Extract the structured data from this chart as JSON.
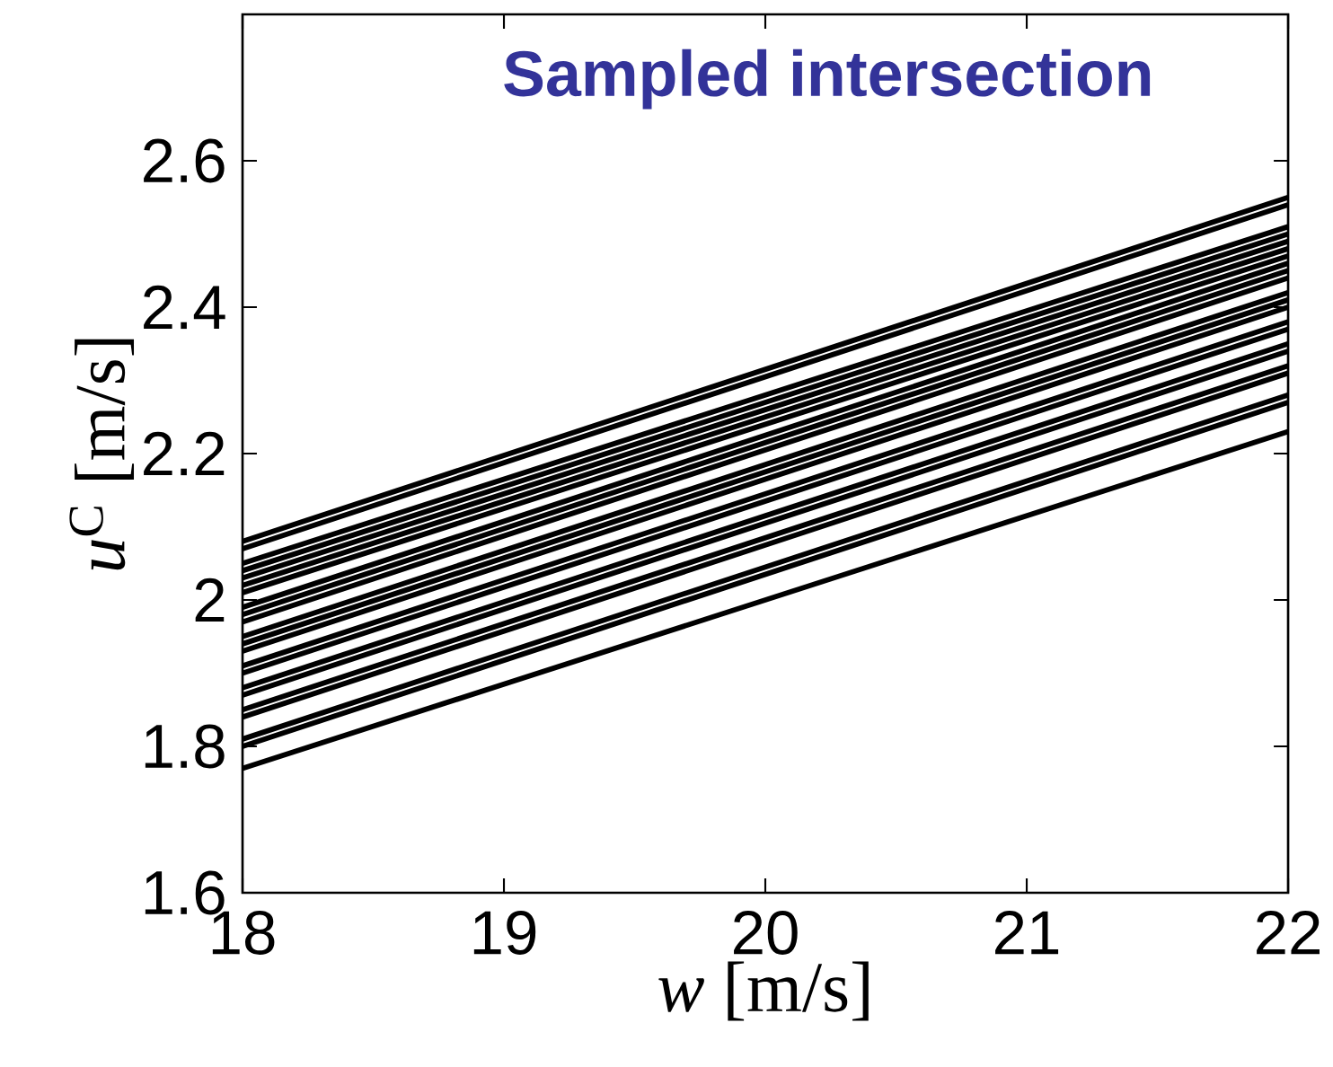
{
  "chart_data": {
    "type": "line",
    "title": "Sampled intersection",
    "xlabel": "*w* [m/s]",
    "ylabel": "*u*$^{C}$ [m/s]",
    "x": [
      18,
      22
    ],
    "xlim": [
      18,
      22
    ],
    "ylim": [
      1.6,
      2.8
    ],
    "xticks": [
      18,
      19,
      20,
      21,
      22
    ],
    "yticks": [
      1.6,
      1.8,
      2,
      2.2,
      2.4,
      2.6
    ],
    "marker": "none",
    "line_style": "solid",
    "series": [
      {
        "color": "#000000",
        "values": [
          2.08,
          2.55
        ]
      },
      {
        "color": "#000000",
        "values": [
          2.07,
          2.54
        ]
      },
      {
        "color": "#000000",
        "values": [
          2.05,
          2.51
        ]
      },
      {
        "color": "#000000",
        "values": [
          2.04,
          2.5
        ]
      },
      {
        "color": "#000000",
        "values": [
          2.03,
          2.49
        ]
      },
      {
        "color": "#000000",
        "values": [
          2.02,
          2.48
        ]
      },
      {
        "color": "#000000",
        "values": [
          2.01,
          2.47
        ]
      },
      {
        "color": "#000000",
        "values": [
          1.99,
          2.46
        ]
      },
      {
        "color": "#000000",
        "values": [
          1.98,
          2.45
        ]
      },
      {
        "color": "#000000",
        "values": [
          1.97,
          2.44
        ]
      },
      {
        "color": "#000000",
        "values": [
          1.95,
          2.42
        ]
      },
      {
        "color": "#000000",
        "values": [
          1.94,
          2.41
        ]
      },
      {
        "color": "#000000",
        "values": [
          1.93,
          2.4
        ]
      },
      {
        "color": "#000000",
        "values": [
          1.91,
          2.38
        ]
      },
      {
        "color": "#000000",
        "values": [
          1.9,
          2.37
        ]
      },
      {
        "color": "#000000",
        "values": [
          1.88,
          2.35
        ]
      },
      {
        "color": "#000000",
        "values": [
          1.87,
          2.34
        ]
      },
      {
        "color": "#000000",
        "values": [
          1.85,
          2.32
        ]
      },
      {
        "color": "#000000",
        "values": [
          1.84,
          2.31
        ]
      },
      {
        "color": "#000000",
        "values": [
          1.81,
          2.28
        ]
      },
      {
        "color": "#000000",
        "values": [
          1.8,
          2.27
        ]
      },
      {
        "color": "#000000",
        "values": [
          1.77,
          2.23
        ]
      }
    ]
  }
}
